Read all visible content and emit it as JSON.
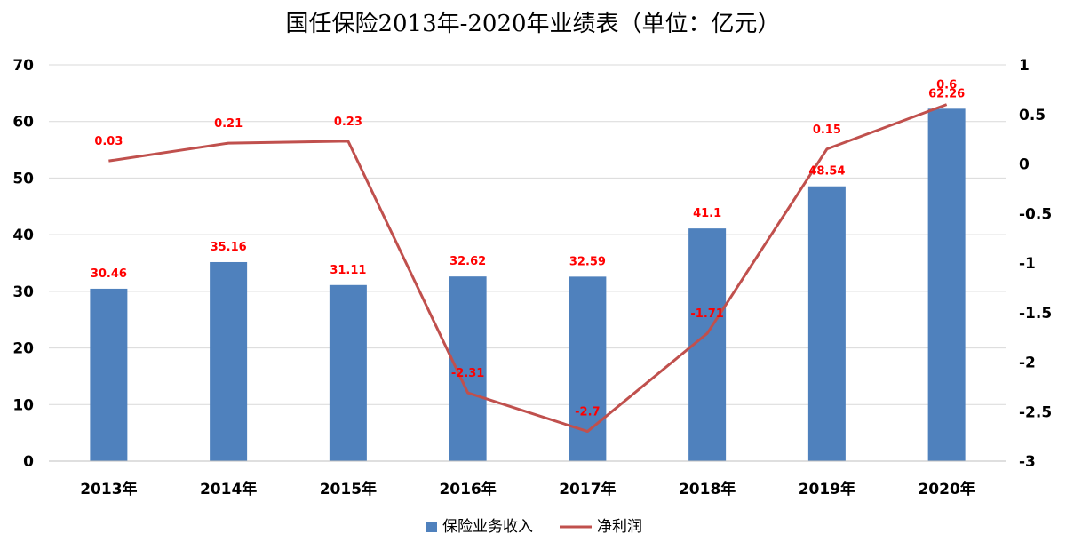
{
  "chart_data": {
    "type": "bar",
    "title": "国任保险2013年-2020年业绩表（单位：亿元）",
    "categories": [
      "2013年",
      "2014年",
      "2015年",
      "2016年",
      "2017年",
      "2018年",
      "2019年",
      "2020年"
    ],
    "series": [
      {
        "name": "保险业务收入",
        "type": "bar",
        "axis": "left",
        "values": [
          30.46,
          35.16,
          31.11,
          32.62,
          32.59,
          41.1,
          48.54,
          62.26
        ],
        "labels": [
          "30.46",
          "35.16",
          "31.11",
          "32.62",
          "32.59",
          "41.1",
          "48.54",
          "62.26"
        ]
      },
      {
        "name": "净利润",
        "type": "line",
        "axis": "right",
        "values": [
          0.03,
          0.21,
          0.23,
          -2.31,
          -2.7,
          -1.71,
          0.15,
          0.6
        ],
        "labels": [
          "0.03",
          "0.21",
          "0.23",
          "-2.31",
          "-2.7",
          "-1.71",
          "0.15",
          "0.6"
        ]
      }
    ],
    "y_left": {
      "min": 0,
      "max": 70,
      "ticks": [
        "0",
        "10",
        "20",
        "30",
        "40",
        "50",
        "60",
        "70"
      ]
    },
    "y_right": {
      "min": -3,
      "max": 1,
      "ticks": [
        "-3",
        "-2.5",
        "-2",
        "-1.5",
        "-1",
        "-0.5",
        "0",
        "0.5",
        "1"
      ]
    },
    "grid": true,
    "legend_position": "bottom",
    "colors": {
      "bar": "#4f81bd",
      "line": "#c0504d",
      "label": "#ff0000",
      "grid": "#d9d9d9",
      "text": "#000000"
    }
  }
}
